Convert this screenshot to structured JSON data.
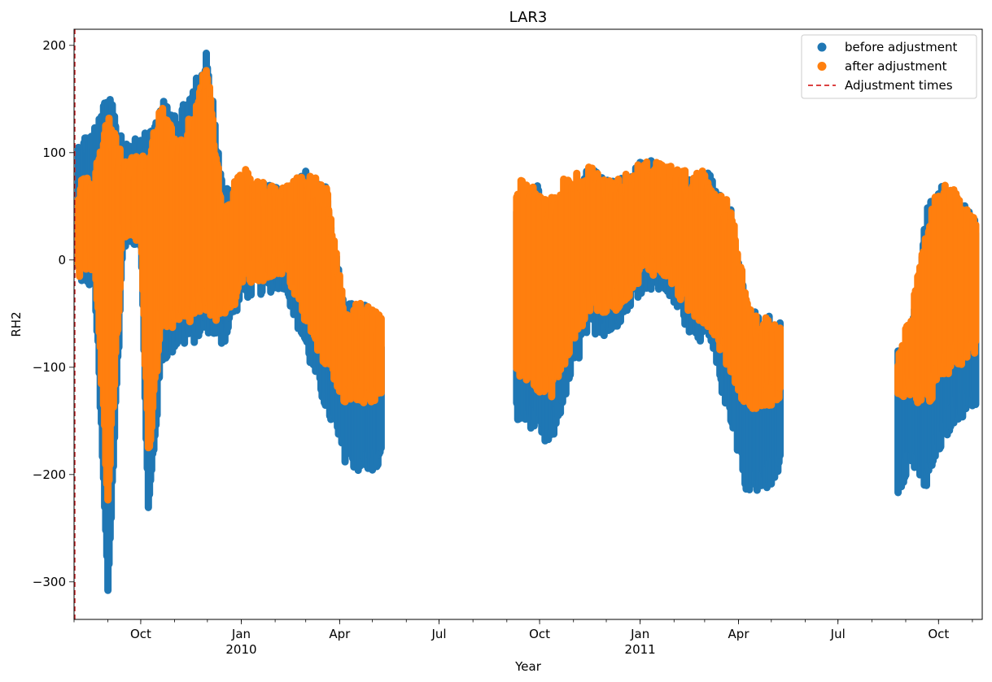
{
  "chart_data": {
    "type": "scatter",
    "title": "LAR3",
    "xlabel": "Year",
    "ylabel": "RH2",
    "xlim": [
      "2009-08-01",
      "2011-11-10"
    ],
    "ylim": [
      -335,
      215
    ],
    "x_ticks": [
      {
        "date": "2009-10-01",
        "label": "Oct",
        "sublabel": ""
      },
      {
        "date": "2010-01-01",
        "label": "Jan",
        "sublabel": "2010"
      },
      {
        "date": "2010-04-01",
        "label": "Apr",
        "sublabel": ""
      },
      {
        "date": "2010-07-01",
        "label": "Jul",
        "sublabel": ""
      },
      {
        "date": "2010-10-01",
        "label": "Oct",
        "sublabel": ""
      },
      {
        "date": "2011-01-01",
        "label": "Jan",
        "sublabel": "2011"
      },
      {
        "date": "2011-04-01",
        "label": "Apr",
        "sublabel": ""
      },
      {
        "date": "2011-07-01",
        "label": "Jul",
        "sublabel": ""
      },
      {
        "date": "2011-10-01",
        "label": "Oct",
        "sublabel": ""
      }
    ],
    "y_ticks": [
      {
        "value": 200,
        "label": "200"
      },
      {
        "value": 100,
        "label": "100"
      },
      {
        "value": 0,
        "label": "0"
      },
      {
        "value": -100,
        "label": "−100"
      },
      {
        "value": -200,
        "label": "−200"
      },
      {
        "value": -300,
        "label": "−300"
      }
    ],
    "grid": false,
    "legend": {
      "position": "top-right",
      "entries": [
        {
          "label": "before adjustment",
          "marker": "circle",
          "color": "#1f77b4"
        },
        {
          "label": "after adjustment",
          "marker": "circle",
          "color": "#ff7f0e"
        },
        {
          "label": "Adjustment times",
          "marker": "dashed-line",
          "color": "#d62728"
        }
      ]
    },
    "adjustment_times": [
      "2009-08-01"
    ],
    "series": [
      {
        "name": "before adjustment",
        "color": "#1f77b4",
        "envelope": [
          {
            "date": "2009-08-05",
            "low": -15,
            "high": 105
          },
          {
            "date": "2009-08-20",
            "low": -20,
            "high": 120
          },
          {
            "date": "2009-09-01",
            "low": -310,
            "high": 148
          },
          {
            "date": "2009-09-15",
            "low": 20,
            "high": 110
          },
          {
            "date": "2009-10-01",
            "low": 20,
            "high": 112
          },
          {
            "date": "2009-10-08",
            "low": -240,
            "high": 110
          },
          {
            "date": "2009-10-20",
            "low": -90,
            "high": 142
          },
          {
            "date": "2009-11-05",
            "low": -75,
            "high": 130
          },
          {
            "date": "2009-11-20",
            "low": -70,
            "high": 160
          },
          {
            "date": "2009-12-01",
            "low": -60,
            "high": 190
          },
          {
            "date": "2009-12-15",
            "low": -75,
            "high": 60
          },
          {
            "date": "2010-01-01",
            "low": -30,
            "high": 60
          },
          {
            "date": "2010-01-20",
            "low": -25,
            "high": 65
          },
          {
            "date": "2010-02-10",
            "low": -20,
            "high": 60
          },
          {
            "date": "2010-03-01",
            "low": -80,
            "high": 76
          },
          {
            "date": "2010-03-20",
            "low": -135,
            "high": 60
          },
          {
            "date": "2010-04-05",
            "low": -180,
            "high": -50
          },
          {
            "date": "2010-04-20",
            "low": -192,
            "high": -45
          },
          {
            "date": "2010-05-10",
            "low": -190,
            "high": -65
          },
          {
            "date": "2010-09-10",
            "low": -145,
            "high": 45
          },
          {
            "date": "2010-09-25",
            "low": -150,
            "high": 68
          },
          {
            "date": "2010-10-10",
            "low": -172,
            "high": 45
          },
          {
            "date": "2010-10-25",
            "low": -120,
            "high": 55
          },
          {
            "date": "2010-11-15",
            "low": -60,
            "high": 78
          },
          {
            "date": "2010-12-05",
            "low": -65,
            "high": 70
          },
          {
            "date": "2010-12-20",
            "low": -40,
            "high": 70
          },
          {
            "date": "2011-01-05",
            "low": -20,
            "high": 88
          },
          {
            "date": "2011-01-25",
            "low": -25,
            "high": 80
          },
          {
            "date": "2011-02-15",
            "low": -60,
            "high": 70
          },
          {
            "date": "2011-03-05",
            "low": -75,
            "high": 75
          },
          {
            "date": "2011-03-25",
            "low": -145,
            "high": 40
          },
          {
            "date": "2011-04-10",
            "low": -215,
            "high": -50
          },
          {
            "date": "2011-04-25",
            "low": -210,
            "high": -60
          },
          {
            "date": "2011-05-10",
            "low": -190,
            "high": -60
          },
          {
            "date": "2011-08-25",
            "low": -212,
            "high": -90
          },
          {
            "date": "2011-09-05",
            "low": -185,
            "high": -80
          },
          {
            "date": "2011-09-20",
            "low": -210,
            "high": 40
          },
          {
            "date": "2011-10-01",
            "low": -175,
            "high": 65
          },
          {
            "date": "2011-10-15",
            "low": -145,
            "high": 55
          },
          {
            "date": "2011-11-05",
            "low": -130,
            "high": 30
          }
        ]
      },
      {
        "name": "after adjustment",
        "color": "#ff7f0e",
        "envelope": [
          {
            "date": "2009-08-05",
            "low": -10,
            "high": 65
          },
          {
            "date": "2009-08-20",
            "low": -5,
            "high": 75
          },
          {
            "date": "2009-09-01",
            "low": -220,
            "high": 128
          },
          {
            "date": "2009-09-15",
            "low": 30,
            "high": 88
          },
          {
            "date": "2009-10-01",
            "low": 20,
            "high": 90
          },
          {
            "date": "2009-10-08",
            "low": -185,
            "high": 95
          },
          {
            "date": "2009-10-20",
            "low": -55,
            "high": 140
          },
          {
            "date": "2009-11-05",
            "low": -60,
            "high": 100
          },
          {
            "date": "2009-11-20",
            "low": -50,
            "high": 140
          },
          {
            "date": "2009-12-01",
            "low": -40,
            "high": 180
          },
          {
            "date": "2009-12-15",
            "low": -60,
            "high": 40
          },
          {
            "date": "2010-01-01",
            "low": -20,
            "high": 80
          },
          {
            "date": "2010-01-20",
            "low": -15,
            "high": 65
          },
          {
            "date": "2010-02-10",
            "low": -5,
            "high": 60
          },
          {
            "date": "2010-03-01",
            "low": -55,
            "high": 76
          },
          {
            "date": "2010-03-20",
            "low": -95,
            "high": 62
          },
          {
            "date": "2010-04-05",
            "low": -125,
            "high": -50
          },
          {
            "date": "2010-04-20",
            "low": -130,
            "high": -45
          },
          {
            "date": "2010-05-10",
            "low": -125,
            "high": -60
          },
          {
            "date": "2010-09-10",
            "low": -100,
            "high": 68
          },
          {
            "date": "2010-09-25",
            "low": -110,
            "high": 65
          },
          {
            "date": "2010-10-10",
            "low": -125,
            "high": 50
          },
          {
            "date": "2010-10-25",
            "low": -90,
            "high": 72
          },
          {
            "date": "2010-11-15",
            "low": -40,
            "high": 80
          },
          {
            "date": "2010-12-05",
            "low": -45,
            "high": 70
          },
          {
            "date": "2010-12-20",
            "low": -30,
            "high": 75
          },
          {
            "date": "2011-01-05",
            "low": -5,
            "high": 90
          },
          {
            "date": "2011-01-25",
            "low": -10,
            "high": 82
          },
          {
            "date": "2011-02-15",
            "low": -45,
            "high": 75
          },
          {
            "date": "2011-03-05",
            "low": -55,
            "high": 76
          },
          {
            "date": "2011-03-25",
            "low": -100,
            "high": 42
          },
          {
            "date": "2011-04-10",
            "low": -135,
            "high": -50
          },
          {
            "date": "2011-04-25",
            "low": -130,
            "high": -60
          },
          {
            "date": "2011-05-10",
            "low": -125,
            "high": -60
          },
          {
            "date": "2011-08-25",
            "low": -130,
            "high": -90
          },
          {
            "date": "2011-09-05",
            "low": -120,
            "high": -60
          },
          {
            "date": "2011-09-20",
            "low": -135,
            "high": 20
          },
          {
            "date": "2011-10-01",
            "low": -110,
            "high": 67
          },
          {
            "date": "2011-10-15",
            "low": -95,
            "high": 58
          },
          {
            "date": "2011-11-05",
            "low": -80,
            "high": 30
          }
        ]
      }
    ]
  }
}
